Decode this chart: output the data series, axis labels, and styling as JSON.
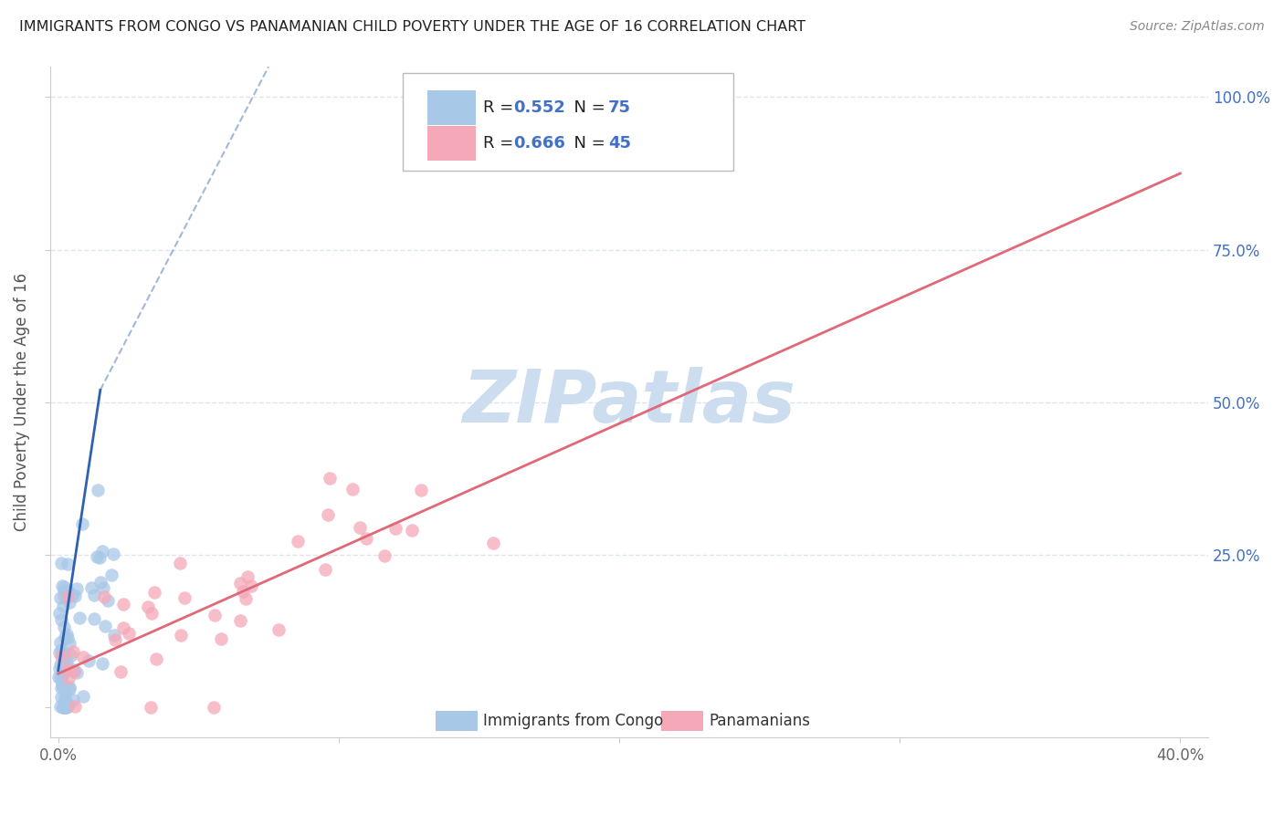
{
  "title": "IMMIGRANTS FROM CONGO VS PANAMANIAN CHILD POVERTY UNDER THE AGE OF 16 CORRELATION CHART",
  "source": "Source: ZipAtlas.com",
  "ylabel": "Child Poverty Under the Age of 16",
  "xlabel_blue": "Immigrants from Congo",
  "xlabel_pink": "Panamanians",
  "R_blue": 0.552,
  "N_blue": 75,
  "R_pink": 0.666,
  "N_pink": 45,
  "blue_color": "#a8c8e8",
  "pink_color": "#f5a8b8",
  "blue_line_color": "#3060b0",
  "pink_line_color": "#e06878",
  "grid_color": "#dde5f0",
  "watermark_color": "#ccddf0",
  "title_color": "#222222",
  "right_label_color": "#4070c8",
  "legend_text_color": "#222222",
  "source_color": "#888888"
}
